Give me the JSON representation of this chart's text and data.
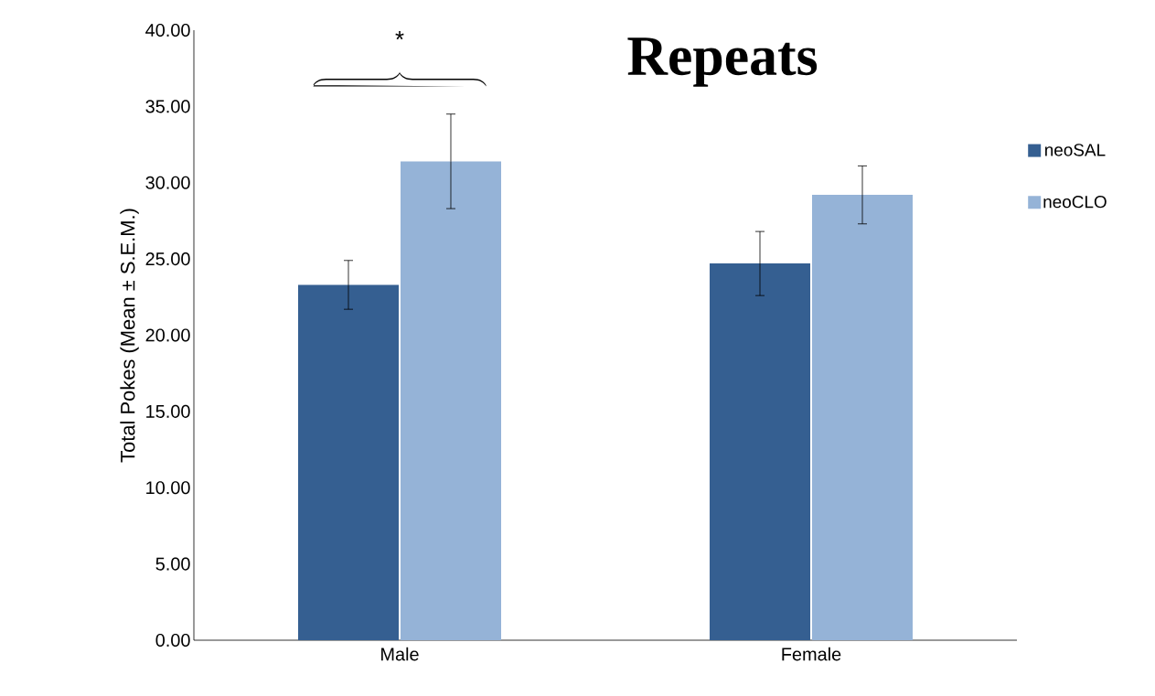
{
  "chart_data": {
    "type": "bar",
    "title": "Repeats",
    "ylabel": "Total Pokes (Mean ± S.E.M.)",
    "categories": [
      "Male",
      "Female"
    ],
    "series": [
      {
        "name": "neoSAL",
        "color": "#355f91",
        "values": [
          23.3,
          24.7
        ],
        "errors": [
          1.6,
          2.1
        ]
      },
      {
        "name": "neoCLO",
        "color": "#95b3d7",
        "values": [
          31.4,
          29.2
        ],
        "errors": [
          3.1,
          1.9
        ]
      }
    ],
    "ylim": [
      0,
      40
    ],
    "yticks": [
      {
        "value": 0,
        "label": "0.00"
      },
      {
        "value": 5,
        "label": "5.00"
      },
      {
        "value": 10,
        "label": "10.00"
      },
      {
        "value": 15,
        "label": "15.00"
      },
      {
        "value": 20,
        "label": "20.00"
      },
      {
        "value": 25,
        "label": "25.00"
      },
      {
        "value": 30,
        "label": "30.00"
      },
      {
        "value": 35,
        "label": "35.00"
      },
      {
        "value": 40,
        "label": "40.00"
      }
    ],
    "annotations": [
      "*"
    ],
    "legend": "right",
    "grid": false
  }
}
